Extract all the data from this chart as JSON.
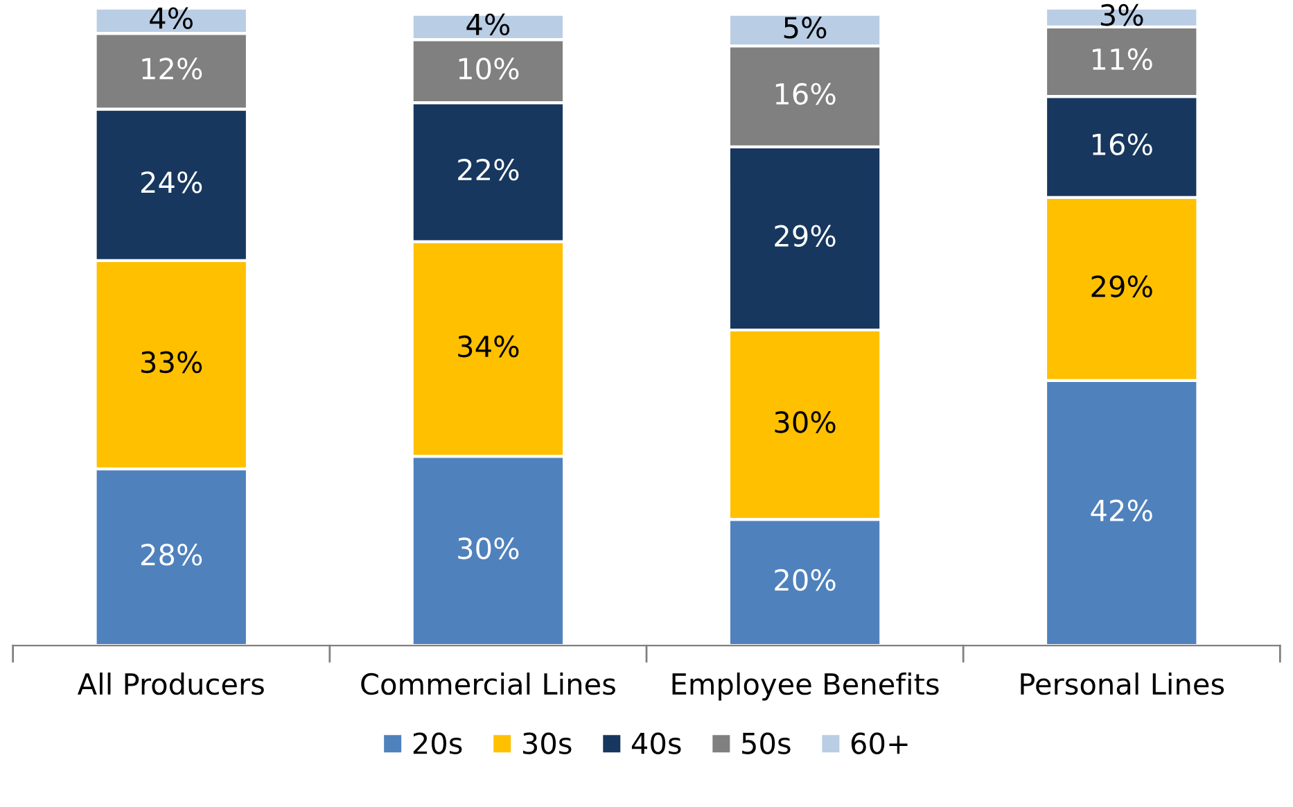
{
  "chart_data": {
    "type": "bar",
    "stacked": true,
    "categories": [
      "All Producers",
      "Commercial Lines",
      "Employee Benefits",
      "Personal Lines"
    ],
    "series": [
      {
        "name": "20s",
        "color": "#4f81bd",
        "values": [
          28,
          30,
          20,
          42
        ],
        "value_labels": [
          "28%",
          "30%",
          "20%",
          "42%"
        ]
      },
      {
        "name": "30s",
        "color": "#ffc000",
        "values": [
          33,
          34,
          30,
          29
        ],
        "value_labels": [
          "33%",
          "34%",
          "30%",
          "29%"
        ]
      },
      {
        "name": "40s",
        "color": "#17375e",
        "values": [
          24,
          22,
          29,
          16
        ],
        "value_labels": [
          "24%",
          "22%",
          "29%",
          "16%"
        ]
      },
      {
        "name": "50s",
        "color": "#808080",
        "values": [
          12,
          10,
          16,
          11
        ],
        "value_labels": [
          "12%",
          "10%",
          "16%",
          "11%"
        ]
      },
      {
        "name": "60+",
        "color": "#b9cde5",
        "values": [
          4,
          4,
          5,
          3
        ],
        "value_labels": [
          "4%",
          "4%",
          "5%",
          "3%"
        ]
      }
    ],
    "ylim": [
      0,
      101
    ],
    "legend": "bottom"
  }
}
